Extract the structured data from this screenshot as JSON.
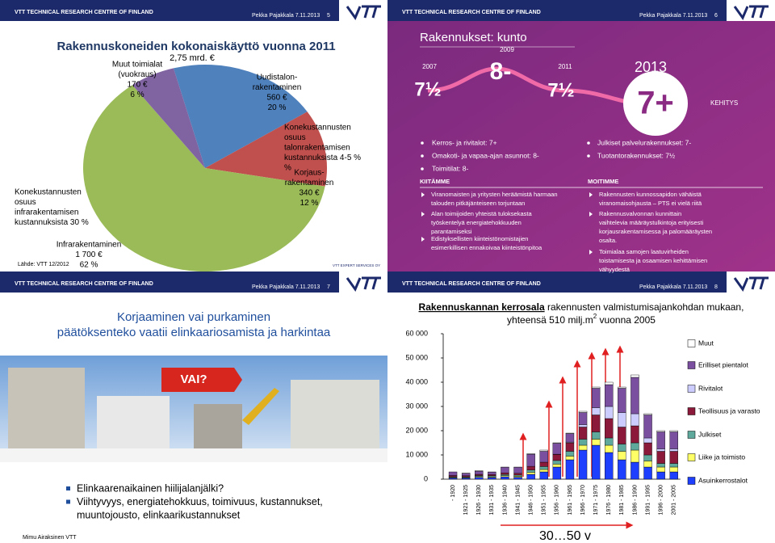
{
  "headers": [
    {
      "org": "VTT TECHNICAL RESEARCH CENTRE OF FINLAND",
      "author": "Pekka Pajakkala 7.11.2013",
      "page": 5
    },
    {
      "org": "VTT TECHNICAL RESEARCH CENTRE OF FINLAND",
      "author": "Pekka Pajakkala 7.11.2013",
      "page": 6
    },
    {
      "org": "VTT TECHNICAL RESEARCH CENTRE OF FINLAND",
      "author": "Pekka Pajakkala 7.11.2013",
      "page": 7
    },
    {
      "org": "VTT TECHNICAL RESEARCH CENTRE OF FINLAND",
      "author": "Pekka Pajakkala 7.11.2013",
      "page": 8
    }
  ],
  "chart_data": [
    {
      "type": "pie",
      "title": "Rakennuskoneiden kokonaiskäyttö vuonna 2011",
      "total_label": "2,75 mrd. €",
      "categories": [
        [
          "Uudistalon-",
          "rakentaminen"
        ],
        [
          "Korjaus-",
          "rakentaminen"
        ],
        [
          "Infrarakentaminen"
        ],
        [
          "Muut toimialat",
          "(vuokraus)"
        ]
      ],
      "amount_labels": [
        "560 €",
        "340 €",
        "1 700 €",
        "170 €"
      ],
      "values": [
        20,
        12,
        62,
        6
      ],
      "value_labels": [
        "20 %",
        "12 %",
        "62 %",
        "6 %"
      ],
      "colors": [
        "#4f81bd",
        "#c0504d",
        "#9bbb59",
        "#8064a2"
      ],
      "annotations": [
        [
          "Konekustannusten",
          "osuus",
          "talonrakentamisen",
          "kustannuksista 4-5 %",
          "%"
        ],
        [
          "Konekustannusten",
          "osuus",
          "infrarakentamisen",
          "kustannuksista 30 %"
        ]
      ],
      "source": "Lähde: VTT 12/2012",
      "logo_caption": "VTT EXPERT SERVICES OY"
    },
    {
      "type": "bar",
      "stacked": true,
      "title_parts": [
        "Rakennuskannan kerrosala",
        " rakennusten valmistumisajankohdan mukaan,",
        "yhteensä 510 milj.m",
        "2",
        " vuonna 2005"
      ],
      "categories": [
        "- 1920",
        "1921 - 1925",
        "1926 - 1930",
        "1931 - 1935",
        "1936 - 1940",
        "1941 - 1945",
        "1946 - 1950",
        "1951 - 1955",
        "1956 - 1960",
        "1961 - 1965",
        "1966 - 1970",
        "1971 - 1975",
        "1976 - 1980",
        "1981 - 1985",
        "1986 - 1990",
        "1991 - 1995",
        "1996 - 2000",
        "2001 - 2005"
      ],
      "series": [
        {
          "name": "Muut",
          "color": "#ffffff",
          "values": [
            0,
            100,
            200,
            100,
            100,
            100,
            200,
            500,
            200,
            200,
            500,
            500,
            1000,
            500,
            1000,
            500,
            500,
            500
          ]
        },
        {
          "name": "Erilliset pientalot",
          "color": "#7b4fa0",
          "values": [
            1500,
            1000,
            1300,
            1000,
            2300,
            2500,
            5000,
            4500,
            4500,
            3500,
            5000,
            8000,
            9000,
            10000,
            15000,
            9500,
            7000,
            7000
          ]
        },
        {
          "name": "Rivitalot",
          "color": "#ccccff",
          "values": [
            0,
            0,
            0,
            0,
            0,
            0,
            0,
            0,
            100,
            300,
            1000,
            3000,
            5000,
            6000,
            5000,
            2000,
            1000,
            1000
          ]
        },
        {
          "name": "Teollisuus ja varasto",
          "color": "#8b1a3a",
          "values": [
            500,
            400,
            500,
            500,
            700,
            700,
            1500,
            1800,
            2500,
            3500,
            5000,
            7000,
            8000,
            7000,
            7000,
            5000,
            5000,
            5000
          ]
        },
        {
          "name": "Julkiset",
          "color": "#5fa89c",
          "values": [
            300,
            300,
            400,
            400,
            500,
            500,
            1000,
            1200,
            1500,
            2000,
            2500,
            3000,
            3000,
            3000,
            3000,
            2500,
            1500,
            1500
          ]
        },
        {
          "name": "Liike ja toimisto",
          "color": "#ffff66",
          "values": [
            200,
            200,
            300,
            300,
            400,
            400,
            800,
            1000,
            1200,
            1500,
            2000,
            2500,
            3000,
            3500,
            5000,
            2500,
            2000,
            2000
          ]
        },
        {
          "name": "Asuinkerrostalot",
          "color": "#1f3fff",
          "values": [
            500,
            500,
            800,
            700,
            1000,
            800,
            2000,
            3000,
            5000,
            8000,
            12000,
            14000,
            11000,
            8000,
            7000,
            5000,
            3000,
            3000
          ]
        }
      ],
      "ylim": [
        0,
        60000
      ],
      "yticks": [
        0,
        {
          "value": 10000,
          "label": "10 000"
        },
        {
          "value": 20000,
          "label": "20 000"
        },
        {
          "value": 30000,
          "label": "30 000"
        },
        {
          "value": 40000,
          "label": "40 000"
        },
        {
          "value": 50000,
          "label": "50 000"
        },
        {
          "value": 60000,
          "label": "60 000"
        }
      ],
      "annotation": "30…50 v"
    }
  ],
  "slide6": {
    "title": "Rakennukset: kunto",
    "timeline": [
      {
        "year": 2007,
        "grade": "7½"
      },
      {
        "year": 2009,
        "grade": "8-"
      },
      {
        "year": 2011,
        "grade": "7½"
      },
      {
        "year": 2013,
        "grade": "7+"
      }
    ],
    "trend": "KEHITYS",
    "bullets_left": [
      "Kerros- ja rivitalot: 7+",
      "Omakoti- ja vapaa-ajan asunnot: 8-",
      "Toimitilat: 8-"
    ],
    "bullets_right": [
      "Julkiset palvelurakennukset: 7-",
      "Tuotantorakennukset: 7½"
    ],
    "praise": {
      "heading": "KIITÄMME",
      "items": [
        [
          "Viranomaisten ja yritysten heräämistä harmaan",
          "talouden pitkäjänteiseen torjuntaan"
        ],
        [
          "Alan toimijoiden yhteistä tuloksekasta",
          "työskentelyä energiatehokkuuden",
          "parantamiseksi"
        ],
        [
          "Edistyksellisten kiinteistönomistajien",
          "esimerkillisen ennakoivaa kiinteistönpitoa"
        ]
      ]
    },
    "criticism": {
      "heading": "MOITIMME",
      "items": [
        [
          "Rakennusten kunnossapidon vähäistä",
          "viranomaisohjausta – PTS ei vielä riitä"
        ],
        [
          "Rakennusvalvonnan kunnittain",
          "vaihtelevia määräystulkintoja erityisesti",
          "korjausrakentamisessa ja palomääräysten",
          "osalta."
        ],
        [
          "Toimialaa samojen laatuvirheiden",
          "toistamisesta ja osaamisen kehittämisen",
          "vähyydestä"
        ]
      ]
    }
  },
  "slide7": {
    "title": [
      "Korjaaminen vai purkaminen",
      "päätöksenteko vaatii elinkaariosamista ja harkintaa"
    ],
    "question": "VAI?",
    "bullets": [
      [
        "Elinkaarenaikainen hiilijalanjälki?"
      ],
      [
        "Viihtyvyys, energiatehokkuus, toimivuus, kustannukset,",
        "muuntojousto, elinkaarikustannukset"
      ]
    ],
    "footer": "Mimu Airaksinen VTT"
  }
}
